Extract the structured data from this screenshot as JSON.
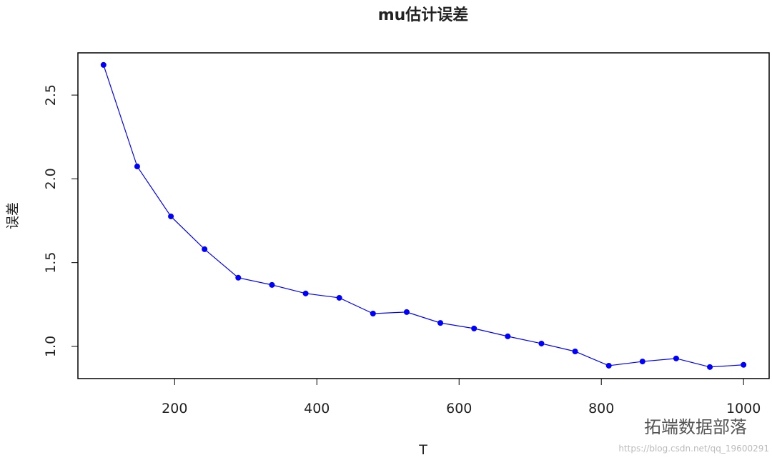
{
  "chart_data": {
    "type": "line",
    "title": "mu估计误差",
    "xlabel": "T",
    "ylabel": "误差",
    "x": [
      100,
      147.37,
      194.74,
      242.11,
      289.47,
      336.84,
      384.21,
      431.58,
      478.95,
      526.32,
      573.68,
      621.05,
      668.42,
      715.79,
      763.16,
      810.53,
      857.89,
      905.26,
      952.63,
      1000
    ],
    "series": [
      {
        "name": "误差",
        "color": "#0000ff",
        "values": [
          2.68,
          2.074,
          1.776,
          1.58,
          1.41,
          1.367,
          1.316,
          1.29,
          1.196,
          1.205,
          1.14,
          1.107,
          1.06,
          1.017,
          0.97,
          0.885,
          0.91,
          0.928,
          0.877,
          0.89
        ]
      }
    ],
    "xlim": [
      64,
      1036
    ],
    "ylim": [
      0.808,
      2.752
    ],
    "xticks": [
      200,
      400,
      600,
      800,
      1000
    ],
    "yticks": [
      {
        "value": 1,
        "label": "1.0"
      },
      1.5,
      {
        "value": 2,
        "label": "2.0"
      },
      2.5
    ]
  },
  "watermark": "拓端数据部落",
  "source": "https://blog.csdn.net/qq_19600291"
}
